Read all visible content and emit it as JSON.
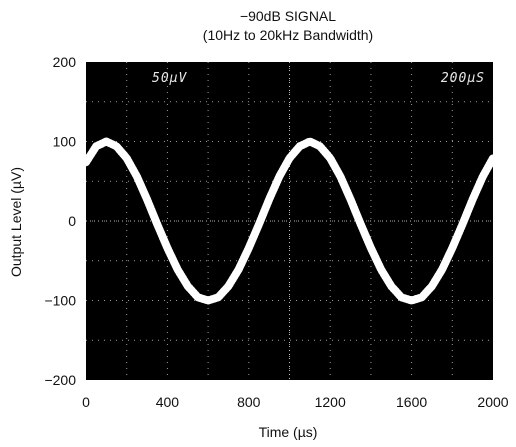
{
  "chart_data": {
    "type": "line",
    "title": "−90dB SIGNAL",
    "subtitle": "(10Hz to 20kHz Bandwidth)",
    "xlabel": "Time (µs)",
    "ylabel": "Output Level (µV)",
    "xlim": [
      0,
      2000
    ],
    "ylim": [
      -200,
      200
    ],
    "x_ticks": [
      "0",
      "400",
      "800",
      "1200",
      "1600",
      "2000"
    ],
    "y_ticks": [
      "200",
      "100",
      "0",
      "−100",
      "−200"
    ],
    "scope_labels": {
      "vertical_scale": "50µV",
      "time_scale": "200µS"
    },
    "background": "#000000",
    "trace_color": "#ffffff",
    "grid": true,
    "series": [
      {
        "x": [
          0,
          50,
          100,
          150,
          200,
          250,
          300,
          350,
          400,
          450,
          500,
          550,
          600,
          650,
          700,
          750,
          800,
          850,
          900,
          950,
          1000,
          1050,
          1100,
          1150,
          1200,
          1250,
          1300,
          1350,
          1400,
          1450,
          1500,
          1550,
          1600,
          1650,
          1700,
          1750,
          1800,
          1850,
          1900,
          1950,
          2000
        ],
        "values": [
          74,
          94,
          100,
          94,
          79,
          56,
          27,
          -4,
          -34,
          -61,
          -82,
          -96,
          -100,
          -96,
          -82,
          -61,
          -34,
          -4,
          27,
          56,
          79,
          94,
          100,
          94,
          79,
          56,
          27,
          -4,
          -34,
          -61,
          -82,
          -96,
          -100,
          -96,
          -82,
          -61,
          -34,
          -4,
          27,
          56,
          79
        ]
      }
    ]
  }
}
